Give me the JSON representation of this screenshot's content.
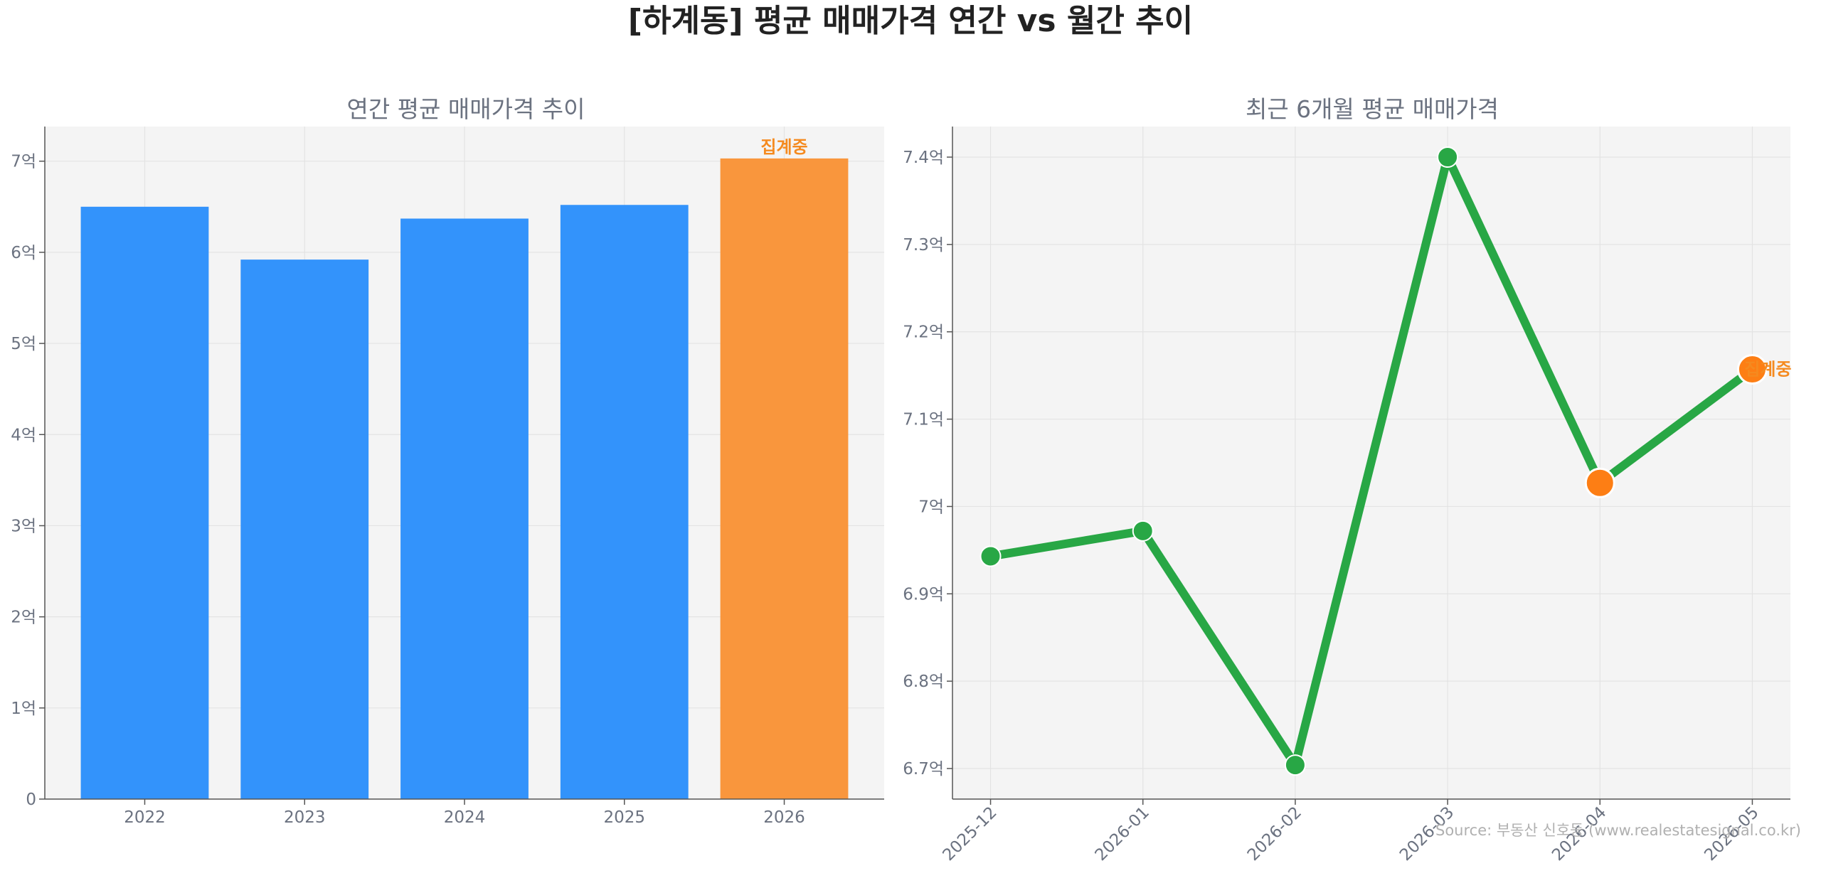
{
  "figure": {
    "title": "[하계동] 평균 매매가격 연간 vs 월간 추이",
    "source": "Source: 부동산 신호등 (www.realestatesignal.co.kr)"
  },
  "chart_data": [
    {
      "type": "bar",
      "title": "연간 평균 매매가격 추이",
      "xlabel": "",
      "ylabel": "",
      "categories": [
        "2022",
        "2023",
        "2024",
        "2025",
        "2026"
      ],
      "values": [
        6.5,
        5.92,
        6.37,
        6.52,
        7.03
      ],
      "ylim": [
        0,
        7.38
      ],
      "yticks": [
        0,
        1,
        2,
        3,
        4,
        5,
        6,
        7
      ],
      "ytick_labels": [
        "0",
        "1억",
        "2억",
        "3억",
        "4억",
        "5억",
        "6억",
        "7억"
      ],
      "unit": "억",
      "grid": true,
      "colors": {
        "bar": "#3393fb",
        "highlight": "#f9963d"
      },
      "highlight_index": 4,
      "annotation": "집계중"
    },
    {
      "type": "line",
      "title": "최근 6개월 평균 매매가격",
      "xlabel": "",
      "ylabel": "",
      "x": [
        "2025-12",
        "2026-01",
        "2026-02",
        "2026-03",
        "2026-04",
        "2026-05"
      ],
      "values": [
        6.943,
        6.972,
        6.704,
        7.4,
        7.027,
        7.157
      ],
      "ylim": [
        6.665,
        7.435
      ],
      "yticks": [
        6.7,
        6.8,
        6.9,
        7.0,
        7.1,
        7.2,
        7.3,
        7.4
      ],
      "ytick_labels": [
        "6.7억",
        "6.8억",
        "6.9억",
        "7억",
        "7.1억",
        "7.2억",
        "7.3억",
        "7.4억"
      ],
      "unit": "억",
      "grid": true,
      "colors": {
        "line": "#28a745",
        "highlight": "#fd7e14"
      },
      "highlight_indices": [
        4,
        5
      ],
      "annotation": "집계중"
    }
  ]
}
